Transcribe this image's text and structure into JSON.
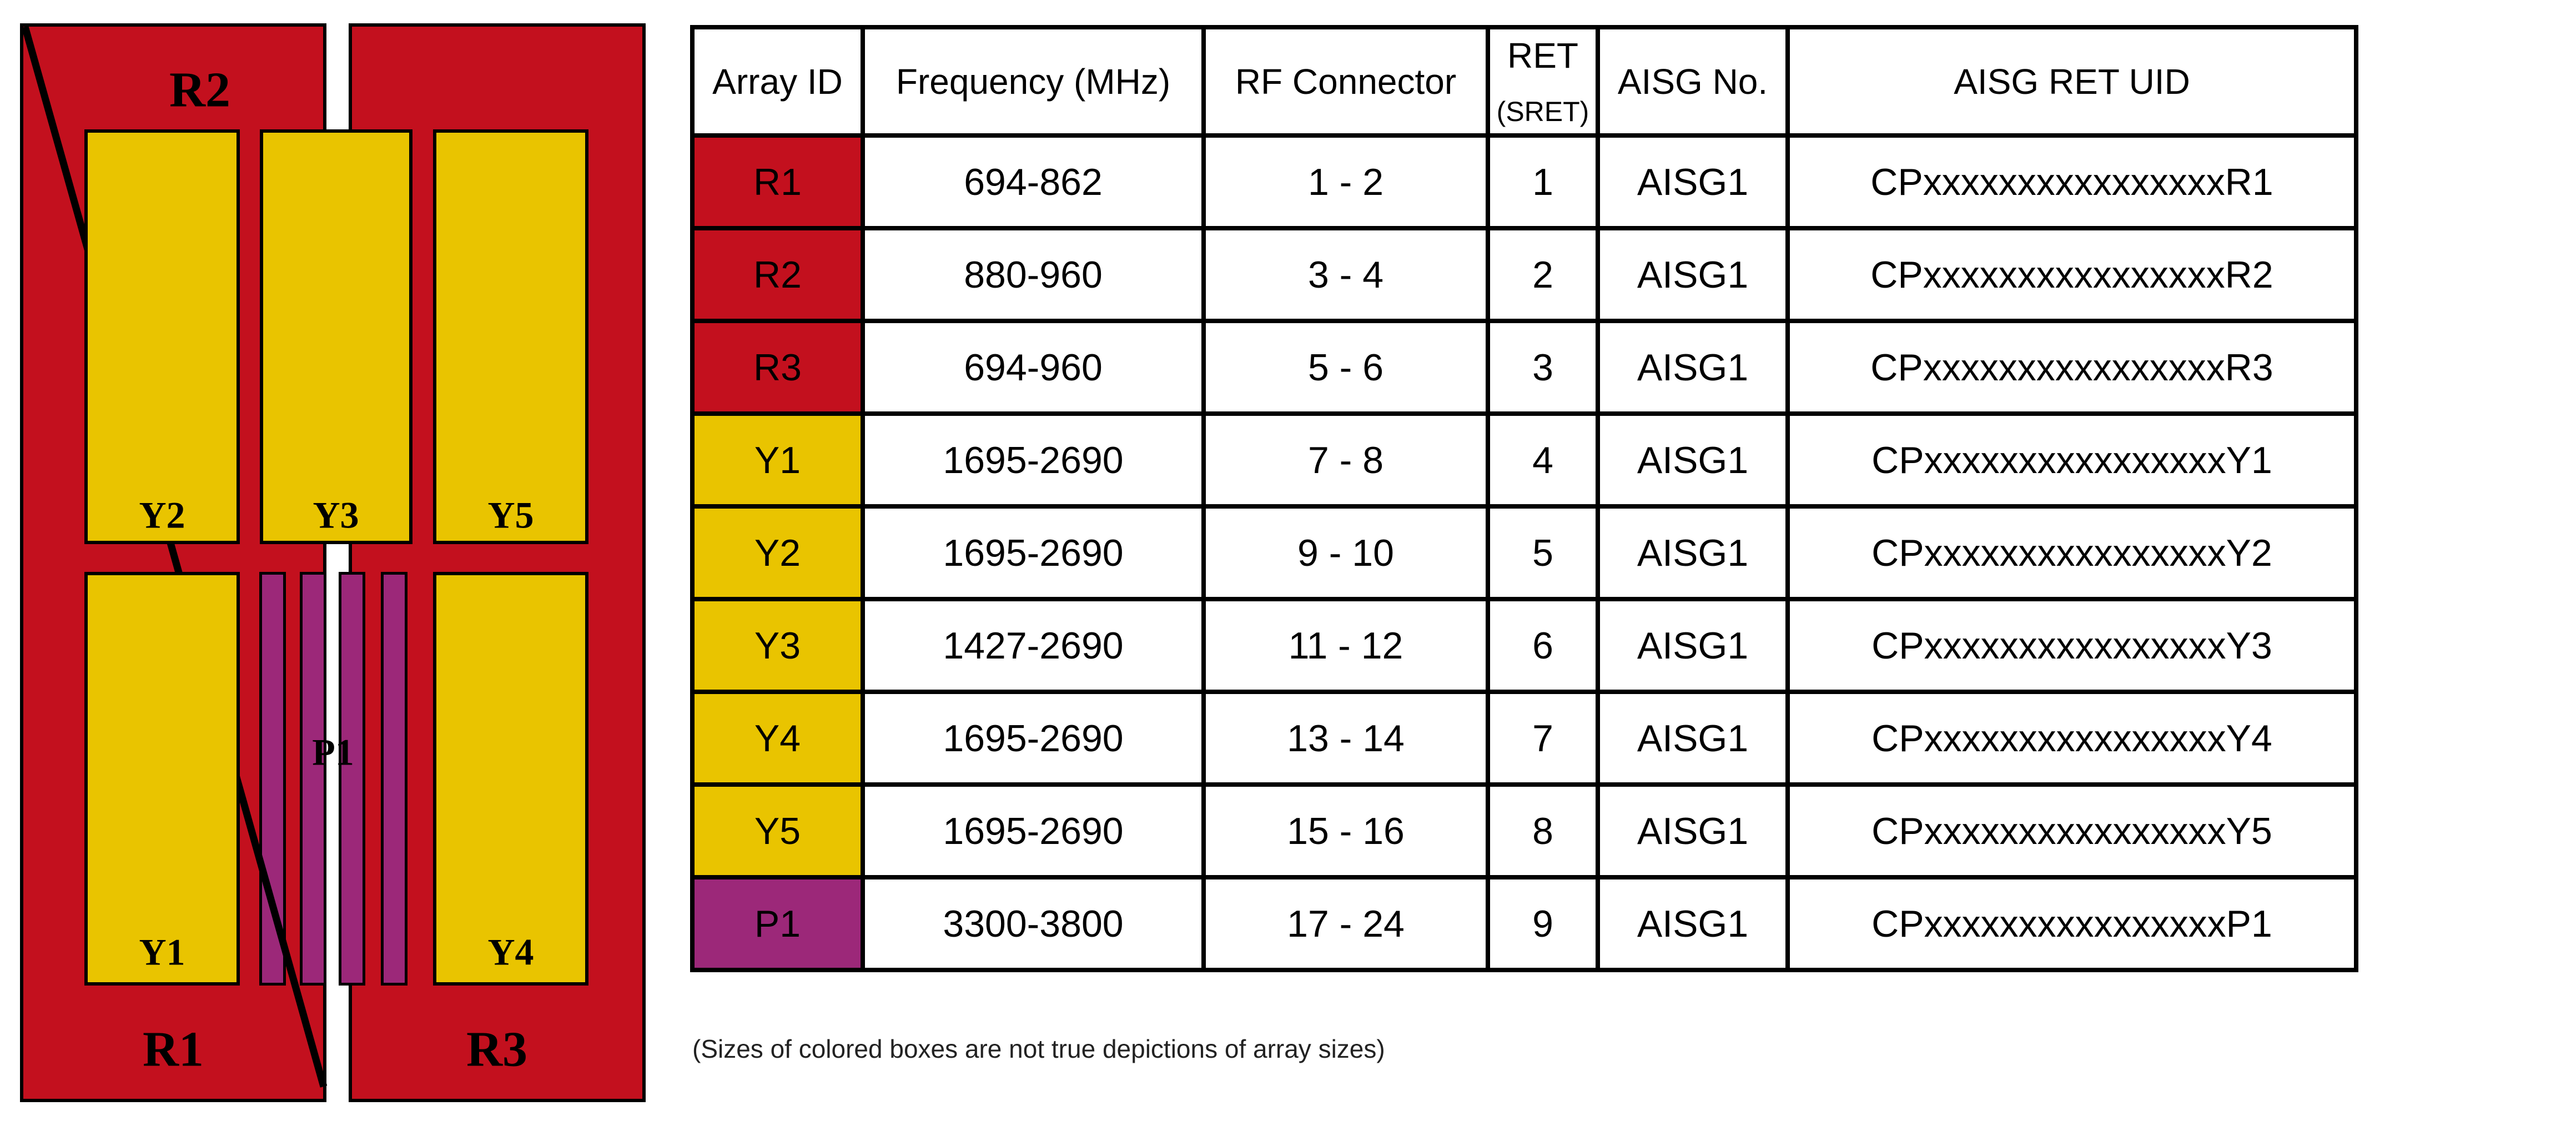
{
  "colors": {
    "red": "#C3101E",
    "yellow": "#E9C400",
    "purple": "#9C2879",
    "border": "#000000"
  },
  "diagram": {
    "labels": {
      "R1": "R1",
      "R2": "R2",
      "R3": "R3",
      "Y1": "Y1",
      "Y2": "Y2",
      "Y3": "Y3",
      "Y4": "Y4",
      "Y5": "Y5",
      "P1": "P1"
    }
  },
  "table": {
    "headers": {
      "array_id": "Array ID",
      "frequency": "Frequency (MHz)",
      "rf_connector": "RF Connector",
      "ret": "RET",
      "ret_sub": "(SRET)",
      "aisg_no": "AISG No.",
      "aisg_ret_uid": "AISG RET UID"
    },
    "rows": [
      {
        "array_id": "R1",
        "color": "red",
        "frequency": "694-862",
        "rf_connector": "1 - 2",
        "ret": "1",
        "aisg_no": "AISG1",
        "aisg_ret_uid": "CPxxxxxxxxxxxxxxxxR1"
      },
      {
        "array_id": "R2",
        "color": "red",
        "frequency": "880-960",
        "rf_connector": "3 - 4",
        "ret": "2",
        "aisg_no": "AISG1",
        "aisg_ret_uid": "CPxxxxxxxxxxxxxxxxR2"
      },
      {
        "array_id": "R3",
        "color": "red",
        "frequency": "694-960",
        "rf_connector": "5 - 6",
        "ret": "3",
        "aisg_no": "AISG1",
        "aisg_ret_uid": "CPxxxxxxxxxxxxxxxxR3"
      },
      {
        "array_id": "Y1",
        "color": "yellow",
        "frequency": "1695-2690",
        "rf_connector": "7 - 8",
        "ret": "4",
        "aisg_no": "AISG1",
        "aisg_ret_uid": "CPxxxxxxxxxxxxxxxxY1"
      },
      {
        "array_id": "Y2",
        "color": "yellow",
        "frequency": "1695-2690",
        "rf_connector": "9 - 10",
        "ret": "5",
        "aisg_no": "AISG1",
        "aisg_ret_uid": "CPxxxxxxxxxxxxxxxxY2"
      },
      {
        "array_id": "Y3",
        "color": "yellow",
        "frequency": "1427-2690",
        "rf_connector": "11 - 12",
        "ret": "6",
        "aisg_no": "AISG1",
        "aisg_ret_uid": "CPxxxxxxxxxxxxxxxxY3"
      },
      {
        "array_id": "Y4",
        "color": "yellow",
        "frequency": "1695-2690",
        "rf_connector": "13 - 14",
        "ret": "7",
        "aisg_no": "AISG1",
        "aisg_ret_uid": "CPxxxxxxxxxxxxxxxxY4"
      },
      {
        "array_id": "Y5",
        "color": "yellow",
        "frequency": "1695-2690",
        "rf_connector": "15 - 16",
        "ret": "8",
        "aisg_no": "AISG1",
        "aisg_ret_uid": "CPxxxxxxxxxxxxxxxxY5"
      },
      {
        "array_id": "P1",
        "color": "purple",
        "frequency": "3300-3800",
        "rf_connector": "17 - 24",
        "ret": "9",
        "aisg_no": "AISG1",
        "aisg_ret_uid": "CPxxxxxxxxxxxxxxxxP1"
      }
    ]
  },
  "caption": "(Sizes of colored boxes are not true depictions of array sizes)"
}
